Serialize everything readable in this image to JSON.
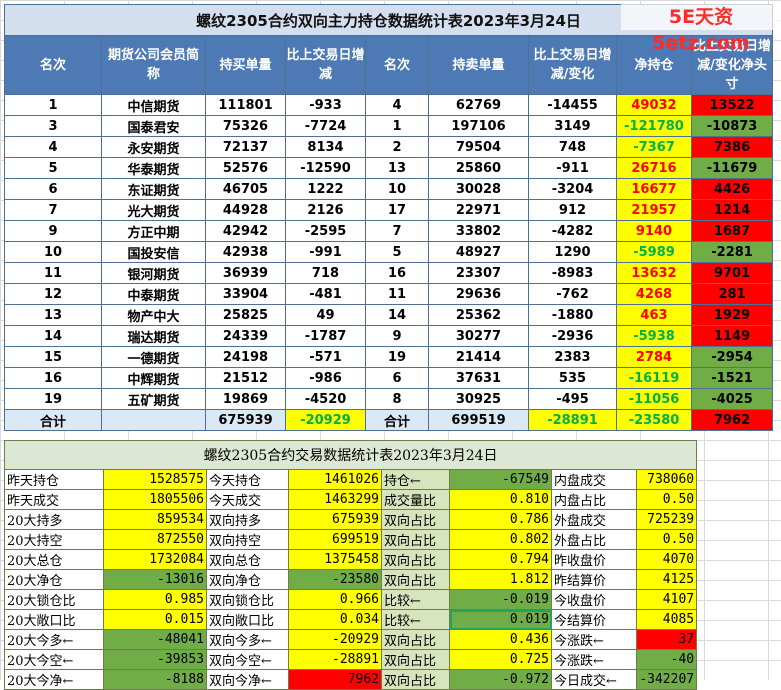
{
  "watermark": "5E天资5etz.com",
  "t1": {
    "title": "螺纹2305合约双向主力持仓数据统计表2023年3月24日",
    "headers": [
      "名次",
      "期货公司会员简称",
      "持买单量",
      "比上交易日增减",
      "名次",
      "持卖单量",
      "比上交易日增减/变化",
      "净持仓",
      "比上交易日增减/变化净头寸"
    ],
    "rows": [
      [
        "1",
        "中信期货",
        "111801",
        "-933",
        "4",
        "62769",
        "-14455",
        "49032",
        "13522"
      ],
      [
        "3",
        "国泰君安",
        "75326",
        "-7724",
        "1",
        "197106",
        "3149",
        "-121780",
        "-10873"
      ],
      [
        "4",
        "永安期货",
        "72137",
        "8134",
        "2",
        "79504",
        "748",
        "-7367",
        "7386"
      ],
      [
        "5",
        "华泰期货",
        "52576",
        "-12590",
        "13",
        "25860",
        "-911",
        "26716",
        "-11679"
      ],
      [
        "6",
        "东证期货",
        "46705",
        "1222",
        "10",
        "30028",
        "-3204",
        "16677",
        "4426"
      ],
      [
        "7",
        "光大期货",
        "44928",
        "2126",
        "17",
        "22971",
        "912",
        "21957",
        "1214"
      ],
      [
        "9",
        "方正中期",
        "42942",
        "-2595",
        "7",
        "33802",
        "-4282",
        "9140",
        "1687"
      ],
      [
        "10",
        "国投安信",
        "42938",
        "-991",
        "5",
        "48927",
        "1290",
        "-5989",
        "-2281"
      ],
      [
        "11",
        "银河期货",
        "36939",
        "718",
        "16",
        "23307",
        "-8983",
        "13632",
        "9701"
      ],
      [
        "12",
        "中泰期货",
        "33904",
        "-481",
        "11",
        "29636",
        "-762",
        "4268",
        "281"
      ],
      [
        "13",
        "物产中大",
        "25825",
        "49",
        "14",
        "25362",
        "-1880",
        "463",
        "1929"
      ],
      [
        "14",
        "瑞达期货",
        "24339",
        "-1787",
        "9",
        "30277",
        "-2936",
        "-5938",
        "1149"
      ],
      [
        "15",
        "一德期货",
        "24198",
        "-571",
        "19",
        "21414",
        "2383",
        "2784",
        "-2954"
      ],
      [
        "16",
        "中辉期货",
        "21512",
        "-986",
        "6",
        "37631",
        "535",
        "-16119",
        "-1521"
      ],
      [
        "19",
        "五矿期货",
        "19869",
        "-4520",
        "8",
        "30925",
        "-495",
        "-11056",
        "-4025"
      ]
    ],
    "summary": [
      "合计",
      "",
      "675939",
      "-20929",
      "合计",
      "699519",
      "-28891",
      "-23580",
      "7962"
    ]
  },
  "t2": {
    "title": "螺纹2305合约交易数据统计表2023年3月24日",
    "rows": [
      [
        "昨天持仓",
        "1528575",
        "今天持仓",
        "1461026",
        "持仓←",
        "-67549",
        "内盘成交",
        "738060"
      ],
      [
        "昨天成交",
        "1805506",
        "今天成交",
        "1463299",
        "成交量比",
        "0.810",
        "内盘占比",
        "0.50"
      ],
      [
        "20大持多",
        "859534",
        "双向持多",
        "675939",
        "双向占比",
        "0.786",
        "外盘成交",
        "725239"
      ],
      [
        "20大持空",
        "872550",
        "双向持空",
        "699519",
        "双向占比",
        "0.802",
        "外盘占比",
        "0.50"
      ],
      [
        "20大总仓",
        "1732084",
        "双向总仓",
        "1375458",
        "双向占比",
        "0.794",
        "昨收盘价",
        "4070"
      ],
      [
        "20大净仓",
        "-13016",
        "双向净仓",
        "-23580",
        "双向占比",
        "1.812",
        "昨结算价",
        "4125"
      ],
      [
        "20大锁仓比",
        "0.985",
        "双向锁仓比",
        "0.966",
        "比较←",
        "-0.019",
        "今收盘价",
        "4107"
      ],
      [
        "20大敞口比",
        "0.015",
        "双向敞口比",
        "0.034",
        "比较←",
        "0.019",
        "今结算价",
        "4085"
      ],
      [
        "20大今多←",
        "-48041",
        "双向今多←",
        "-20929",
        "双向占比",
        "0.436",
        "今涨跌←",
        "37"
      ],
      [
        "20大今空←",
        "-39853",
        "双向今空←",
        "-28891",
        "双向占比",
        "0.725",
        "今涨跌←",
        "-40"
      ],
      [
        "20大今净←",
        "-8188",
        "双向今净←",
        "7962",
        "双向占比",
        "-0.972",
        "今日成交←",
        "-342207"
      ]
    ]
  }
}
